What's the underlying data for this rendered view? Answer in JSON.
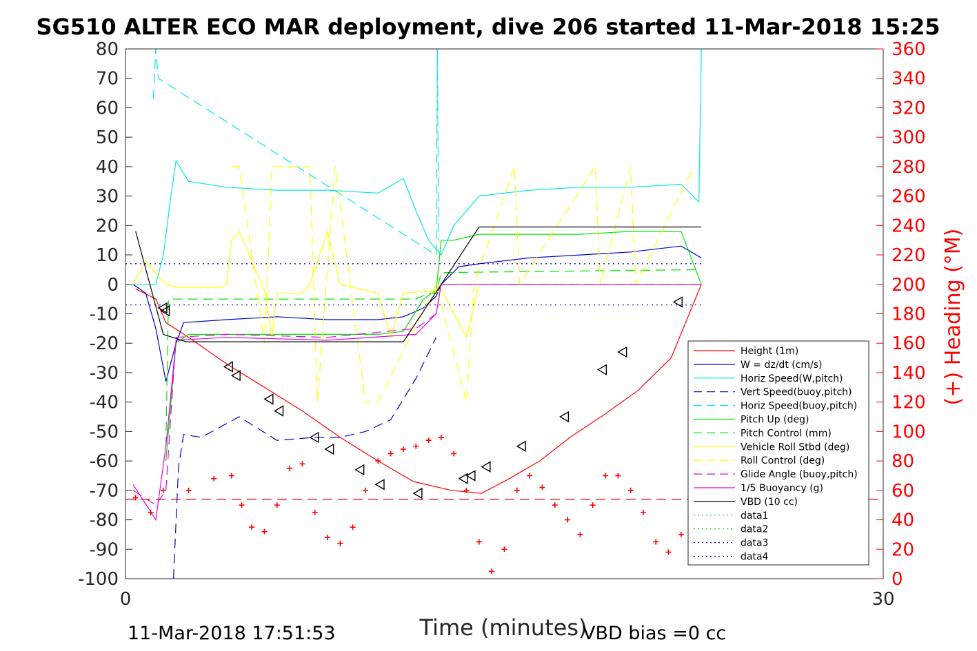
{
  "chart_data": {
    "type": "line",
    "title": "SG510 ALTER ECO MAR deployment, dive 206 started 11-Mar-2018 15:25",
    "xlabel": "Time (minutes)",
    "ylabel": "",
    "ylabel_right": "(+) Heading (°M)",
    "xlim": [
      0,
      30
    ],
    "ylim": [
      -100,
      80
    ],
    "ylim_right": [
      0,
      360
    ],
    "x_ticks": [
      "0",
      "30"
    ],
    "y_ticks": [
      "80",
      "70",
      "60",
      "50",
      "40",
      "30",
      "20",
      "10",
      "0",
      "-10",
      "-20",
      "-30",
      "-40",
      "-50",
      "-60",
      "-70",
      "-80",
      "-90",
      "-100"
    ],
    "y_ticks_right": [
      "360",
      "340",
      "320",
      "300",
      "280",
      "260",
      "240",
      "220",
      "200",
      "180",
      "160",
      "140",
      "120",
      "100",
      "80",
      "60",
      "40",
      "20",
      "0"
    ],
    "grid": false,
    "legend_position": "lower-right",
    "footer_left": "11-Mar-2018 17:51:53",
    "footer_right": "VBD bias =0 cc",
    "series": [
      {
        "name": "Height (1m)",
        "color": "#ff0000",
        "style": "solid",
        "x": [
          0.4,
          1.2,
          1.6,
          2.5,
          4.0,
          5.5,
          7.0,
          8.5,
          10.0,
          11.4,
          12.9,
          14.1,
          15.2,
          16.4,
          17.6,
          19.0,
          20.3,
          21.6,
          22.8
        ],
        "y": [
          -1.5,
          -5,
          -13,
          -18,
          -27,
          -35,
          -43,
          -52,
          -60,
          -67,
          -70,
          -71,
          -66,
          -60,
          -52,
          -44,
          -36,
          -25,
          0
        ]
      },
      {
        "name": "W = dz/dt (cm/s)",
        "color": "#0000cc",
        "style": "solid",
        "x": [
          0.3,
          0.8,
          1.2,
          1.6,
          2.0,
          2.3,
          4.0,
          6.0,
          8.0,
          10.0,
          11.0,
          11.8,
          12.3,
          12.5,
          13.2,
          14.0,
          16.0,
          18.0,
          20.0,
          22.0,
          22.8
        ],
        "y": [
          0,
          -3,
          -15,
          -33,
          -20,
          -13,
          -12,
          -11,
          -12,
          -12,
          -11,
          -8,
          -4,
          0,
          6,
          7,
          9,
          10,
          11,
          13,
          9
        ]
      },
      {
        "name": "Horiz Speed(W,pitch)",
        "color": "#00e6e6",
        "style": "solid",
        "x": [
          0.3,
          1.2,
          1.5,
          1.8,
          2.0,
          2.5,
          4.0,
          6.0,
          8.0,
          10.0,
          11.0,
          11.5,
          12.0,
          12.5,
          13.0,
          14.0,
          16.0,
          18.0,
          20.0,
          22.0,
          22.7,
          22.8
        ],
        "y": [
          0,
          0,
          10,
          30,
          42,
          35,
          33,
          32,
          32,
          31,
          36,
          25,
          15,
          10,
          20,
          30,
          32,
          33,
          33,
          34,
          28,
          80
        ]
      },
      {
        "name": "Vert Speed(buoy,pitch)",
        "color": "#0000cc",
        "style": "dashed",
        "x": [
          1.9,
          2.1,
          2.3,
          3.0,
          4.5,
          6.0,
          7.5,
          8.5,
          9.5,
          10.5,
          11.5,
          12.3
        ],
        "y": [
          -100,
          -62,
          -51,
          -52,
          -45,
          -53,
          -52,
          -52,
          -50,
          -46,
          -32,
          -18
        ]
      },
      {
        "name": "Horiz Speed(buoy,pitch)",
        "color": "#00e6e6",
        "style": "dashed",
        "x": [
          1.1,
          1.2,
          1.3,
          12.3,
          12.35,
          12.4
        ],
        "y": [
          63,
          80,
          70,
          10,
          80,
          15
        ]
      },
      {
        "name": "Pitch Up (deg)",
        "color": "#00e600",
        "style": "solid",
        "x": [
          1.6,
          2.0,
          2.5,
          4.0,
          6.0,
          8.0,
          10.0,
          11.0,
          11.8,
          12.3,
          12.5,
          13.0,
          14.0,
          16.0,
          18.0,
          20.0,
          22.0,
          22.8
        ],
        "y": [
          -60,
          -20,
          -17,
          -17,
          -17,
          -17,
          -17,
          -16,
          -5,
          -2,
          15,
          15,
          17,
          17,
          17,
          18,
          18,
          0
        ]
      },
      {
        "name": "Pitch Control (mm)",
        "color": "#00e600",
        "style": "dashed",
        "x": [
          1.6,
          1.7,
          2.0,
          6.0,
          11.5,
          12.0,
          12.3,
          12.5,
          22.8
        ],
        "y": [
          -55,
          -5,
          -5,
          -5,
          -5,
          -3,
          -3,
          4,
          5
        ]
      },
      {
        "name": "Vehicle Roll Stbd (deg)",
        "color": "#ffff00",
        "style": "solid",
        "x": [
          0.3,
          0.8,
          1.6,
          2.0,
          3.8,
          4.0,
          4.2,
          4.5,
          5.4,
          5.5,
          5.8,
          6.0,
          7.0,
          7.3,
          8.0,
          8.5,
          10.0,
          10.5,
          11.0,
          12.3,
          12.4,
          13.5,
          14.0,
          16.0,
          18.0,
          20.0,
          22.8
        ],
        "y": [
          0,
          8,
          0,
          -1,
          -1,
          0,
          15,
          18,
          0,
          -2,
          -18,
          -3,
          -3,
          0,
          18,
          0,
          -3,
          -18,
          -3,
          -2,
          0,
          -18,
          0,
          0,
          0,
          0,
          0
        ]
      },
      {
        "name": "Roll Control (deg)",
        "color": "#ffff00",
        "style": "dashed",
        "x": [
          4.2,
          4.5,
          5.5,
          5.8,
          7.3,
          7.6,
          8.3,
          9.5,
          10.0,
          12.3,
          13.5,
          13.8,
          15.4,
          15.6,
          18.6,
          18.8,
          20.0,
          20.2,
          22.5
        ],
        "y": [
          40,
          40,
          -20,
          40,
          40,
          -40,
          40,
          -40,
          -40,
          0,
          -40,
          0,
          40,
          0,
          40,
          0,
          40,
          0,
          40
        ]
      },
      {
        "name": "Glide Angle (buoy,pitch)",
        "color": "#e600e6",
        "style": "dashed",
        "x": [
          0.3,
          1.2,
          1.6,
          2.0,
          4.0,
          8.0,
          11.5,
          12.3,
          12.5,
          22.8
        ],
        "y": [
          -70,
          -75,
          -70,
          -18,
          -17,
          -18,
          -15,
          -10,
          0,
          0
        ]
      },
      {
        "name": "1/5 Buoyancy (g)",
        "color": "#e600e6",
        "style": "solid",
        "x": [
          0.3,
          1.2,
          1.6,
          2.0,
          4.0,
          8.0,
          11.5,
          12.3,
          12.5,
          22.8
        ],
        "y": [
          -68,
          -80,
          -55,
          -19,
          -18,
          -19,
          -17,
          -10,
          0,
          0
        ]
      },
      {
        "name": "VBD (10 cc)",
        "color": "#000000",
        "style": "solid",
        "x": [
          0.4,
          1.5,
          2.4,
          11.0,
          12.5,
          14.0,
          22.8
        ],
        "y": [
          18,
          -17,
          -19.5,
          -19.5,
          0,
          19.5,
          19.5
        ]
      },
      {
        "name": "data1",
        "color": "#00e600",
        "style": "dotted",
        "x": [],
        "y": []
      },
      {
        "name": "data2",
        "color": "#00e600",
        "style": "dotted",
        "x": [],
        "y": []
      },
      {
        "name": "data3",
        "color": "#0000cc",
        "style": "dotted",
        "x": [
          0,
          22.8
        ],
        "y": [
          7,
          7
        ]
      },
      {
        "name": "data4",
        "color": "#0000cc",
        "style": "dotted",
        "x": [
          0,
          22.8
        ],
        "y": [
          -7,
          -7
        ]
      }
    ],
    "heading_reference": {
      "color": "#cc0000",
      "style": "dashed",
      "value_deg": 54
    },
    "heading_marks": {
      "color": "#ff0000",
      "marker": "+",
      "x": [
        0.4,
        1.0,
        1.5,
        2.5,
        3.5,
        4.2,
        4.6,
        5.0,
        5.5,
        6.0,
        6.5,
        7.0,
        7.5,
        8.0,
        8.5,
        9.0,
        9.5,
        10.0,
        10.5,
        11.0,
        11.5,
        12.0,
        12.5,
        13.0,
        13.5,
        14.0,
        14.5,
        15.0,
        15.5,
        16.0,
        16.5,
        17.0,
        17.5,
        18.0,
        18.5,
        19.0,
        19.5,
        20.0,
        20.5,
        21.0,
        21.5,
        22.0,
        22.5,
        22.8
      ],
      "y": [
        55,
        45,
        60,
        60,
        68,
        70,
        50,
        35,
        32,
        50,
        75,
        78,
        45,
        28,
        24,
        35,
        60,
        80,
        85,
        88,
        90,
        94,
        96,
        85,
        60,
        25,
        5,
        20,
        60,
        70,
        62,
        50,
        40,
        30,
        50,
        70,
        70,
        60,
        45,
        25,
        18,
        30,
        45,
        40
      ]
    },
    "triangle_marks": {
      "color": "#000000",
      "x": [
        1.5,
        1.6,
        4.1,
        4.4,
        5.7,
        6.1,
        7.5,
        8.1,
        9.3,
        10.1,
        11.6,
        13.4,
        13.7,
        14.3,
        15.7,
        17.4,
        18.9,
        19.7,
        21.9
      ],
      "y": [
        -8,
        -9,
        -28,
        -31,
        -39,
        -43,
        -52,
        -56,
        -63,
        -68,
        -71,
        -66,
        -65,
        -62,
        -55,
        -45,
        -29,
        -23,
        -6
      ]
    },
    "legend": [
      "Height (1m)",
      "W = dz/dt (cm/s)",
      "Horiz Speed(W,pitch)",
      "Vert Speed(buoy,pitch)",
      "Horiz Speed(buoy,pitch)",
      "Pitch Up (deg)",
      "Pitch Control (mm)",
      "Vehicle Roll Stbd (deg)",
      "Roll Control (deg)",
      "Glide Angle (buoy,pitch)",
      "1/5 Buoyancy (g)",
      "VBD (10 cc)",
      "data1",
      "data2",
      "data3",
      "data4"
    ]
  }
}
